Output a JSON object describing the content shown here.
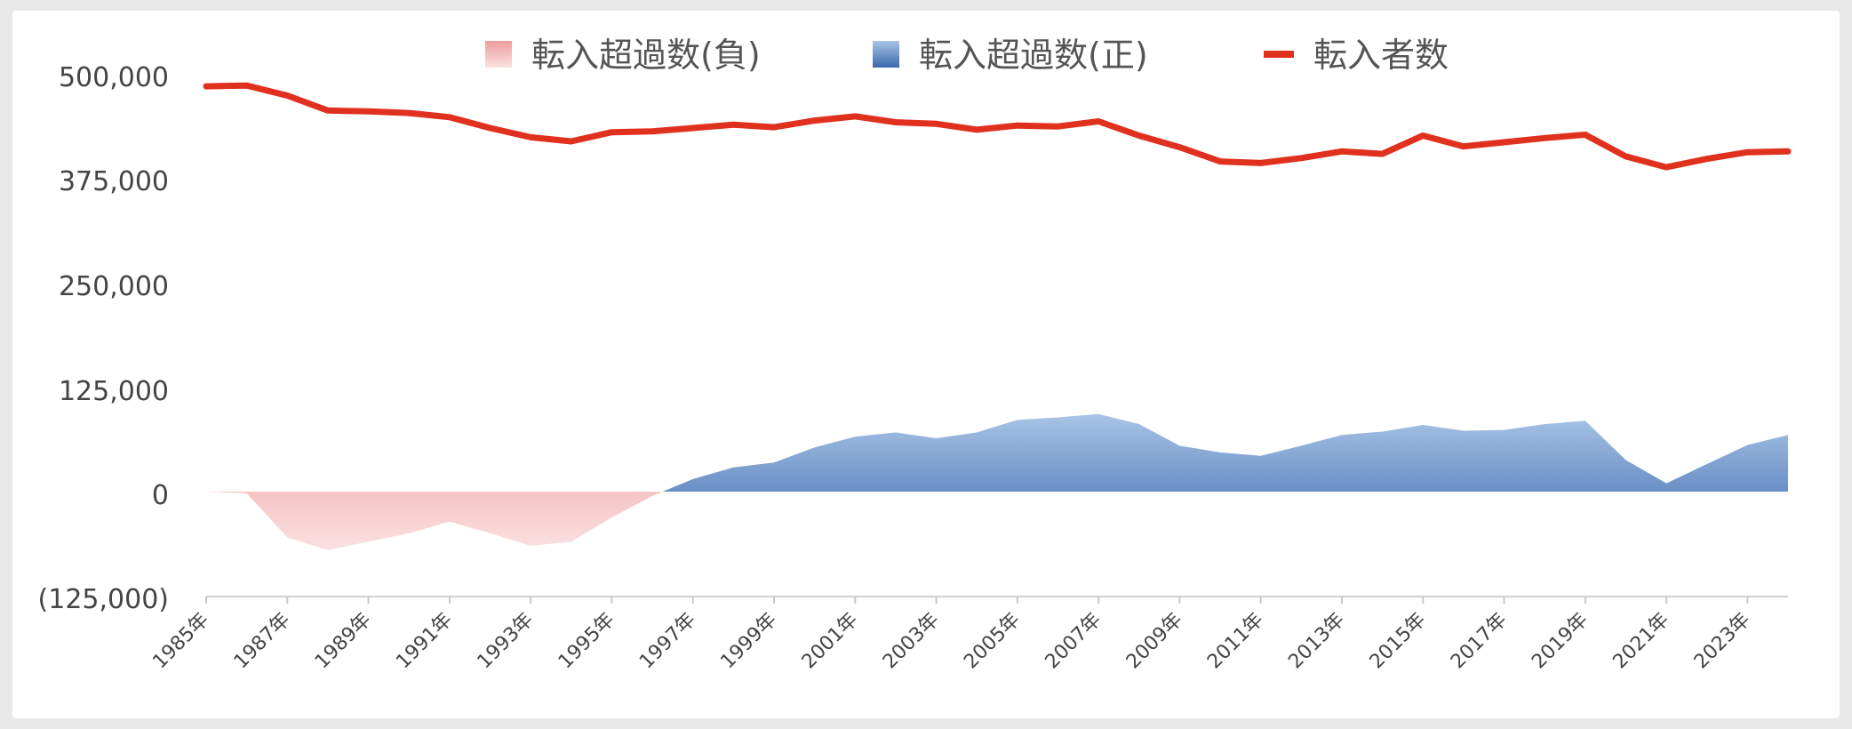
{
  "chart_data": {
    "type": "area",
    "legend": [
      {
        "name": "転入超過数(負)",
        "color": "#f2a6a6",
        "kind": "area"
      },
      {
        "name": "転入超過数(正)",
        "color": "#4a7ebf",
        "kind": "area"
      },
      {
        "name": "転入者数",
        "color": "#e0301e",
        "kind": "line"
      }
    ],
    "legend_position": "top",
    "x_start_year": 1985,
    "x_tick_labels": [
      "1985年",
      "1987年",
      "1989年",
      "1991年",
      "1993年",
      "1995年",
      "1997年",
      "1999年",
      "2001年",
      "2003年",
      "2005年",
      "2007年",
      "2009年",
      "2011年",
      "2013年",
      "2015年",
      "2017年",
      "2019年",
      "2021年",
      "2023年"
    ],
    "y_tick_labels": [
      "500,000",
      "375,000",
      "250,000",
      "125,000",
      "0",
      "(125,000)"
    ],
    "ylim": [
      -125000,
      525000
    ],
    "yticks": [
      500000,
      375000,
      250000,
      125000,
      0,
      -125000
    ],
    "grid": false,
    "x": [
      1985,
      1986,
      1987,
      1988,
      1989,
      1990,
      1991,
      1992,
      1993,
      1994,
      1995,
      1996,
      1997,
      1998,
      1999,
      2000,
      2001,
      2002,
      2003,
      2004,
      2005,
      2006,
      2007,
      2008,
      2009,
      2010,
      2011,
      2012,
      2013,
      2014,
      2015,
      2016,
      2017,
      2018,
      2019,
      2020,
      2021,
      2022,
      2023,
      2024
    ],
    "series": [
      {
        "name": "転入者数",
        "type": "line",
        "values": [
          486000,
          487000,
          475000,
          457000,
          456000,
          454000,
          449000,
          436000,
          425000,
          420000,
          431000,
          432000,
          436000,
          440000,
          437000,
          445000,
          450000,
          443000,
          441000,
          434000,
          439000,
          438000,
          444000,
          427000,
          413000,
          396000,
          394000,
          400000,
          408000,
          405000,
          427000,
          414000,
          419000,
          424000,
          428000,
          402000,
          389000,
          399000,
          407000,
          408000
        ]
      },
      {
        "name": "転入超過数",
        "type": "area",
        "values": [
          0,
          -2000,
          -55000,
          -70000,
          -60000,
          -50000,
          -36000,
          -50000,
          -65000,
          -60000,
          -31000,
          -5000,
          15000,
          29000,
          35000,
          53000,
          66000,
          71000,
          64000,
          71000,
          86000,
          89000,
          93000,
          81000,
          55000,
          47000,
          43000,
          55000,
          68000,
          72000,
          80000,
          73000,
          74000,
          81000,
          85000,
          38000,
          10000,
          33000,
          56000,
          68000
        ]
      }
    ]
  }
}
